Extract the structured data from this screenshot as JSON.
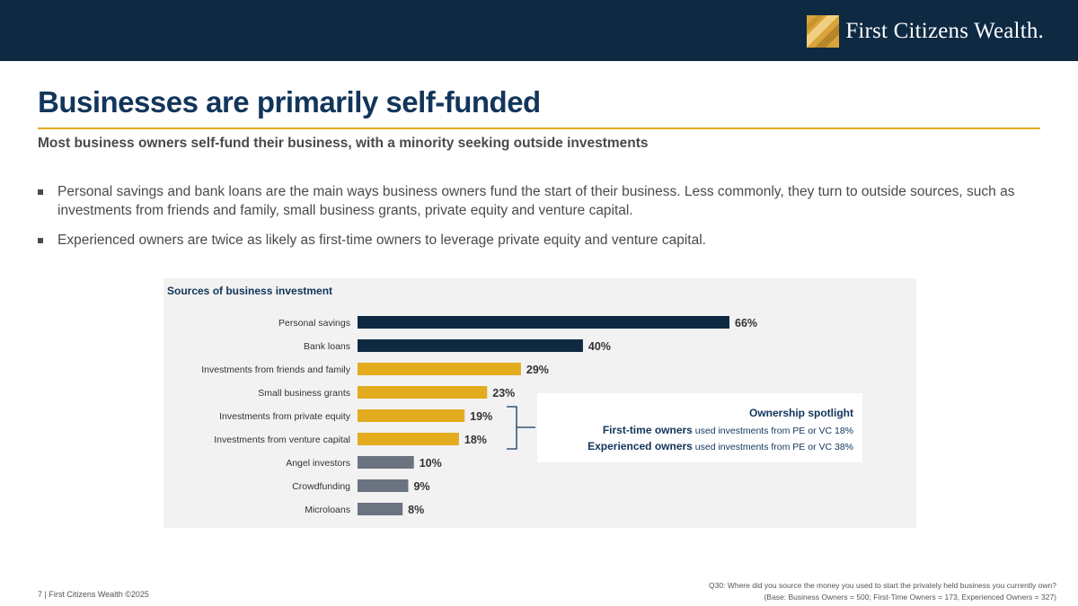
{
  "colors": {
    "navy": "#0e2a43",
    "bar_navy": "#15365a",
    "gold": "#e3ac1f",
    "gray": "#6b7280"
  },
  "header": {
    "logo_text": "First Citizens Wealth.",
    "logo_icon": "fc-logo-icon"
  },
  "title": "Businesses are primarily self-funded",
  "subtitle": "Most business owners self-fund their business, with a minority seeking outside investments",
  "bullets": [
    "Personal savings and bank loans are the main ways business owners fund the start of their business. Less commonly, they turn to outside sources, such as investments from friends and family, small business grants, private equity and venture capital.",
    "Experienced owners are twice as likely as first-time owners to leverage private equity and venture capital."
  ],
  "chart_data": {
    "type": "bar",
    "orientation": "horizontal",
    "title": "Sources of business investment",
    "categories": [
      "Personal savings",
      "Bank loans",
      "Investments from friends and family",
      "Small business grants",
      "Investments from private equity",
      "Investments from venture capital",
      "Angel investors",
      "Crowdfunding",
      "Microloans"
    ],
    "values": [
      66,
      40,
      29,
      23,
      19,
      18,
      10,
      9,
      8
    ],
    "labels": [
      "66%",
      "40%",
      "29%",
      "23%",
      "19%",
      "18%",
      "10%",
      "9%",
      "8%"
    ],
    "color_groups": [
      "navy",
      "navy",
      "gold",
      "gold",
      "gold",
      "gold",
      "gray",
      "gray",
      "gray"
    ],
    "xlim": [
      0,
      66
    ],
    "xlabel": "",
    "ylabel": "",
    "grid": false,
    "legend": "none"
  },
  "spotlight": {
    "title": "Ownership spotlight",
    "rows": [
      {
        "bold": "First-time owners",
        "rest": " used investments from PE or VC 18%"
      },
      {
        "bold": "Experienced owners",
        "rest": " used investments from PE or VC 38%"
      }
    ]
  },
  "footer": {
    "left": "7 | First Citizens Wealth ©2025",
    "note1": "Q30: Where did you source the money you used to start the privately held business you currently own?",
    "note2": "(Base: Business Owners = 500; First-Time Owners = 173, Experienced Owners = 327)"
  }
}
